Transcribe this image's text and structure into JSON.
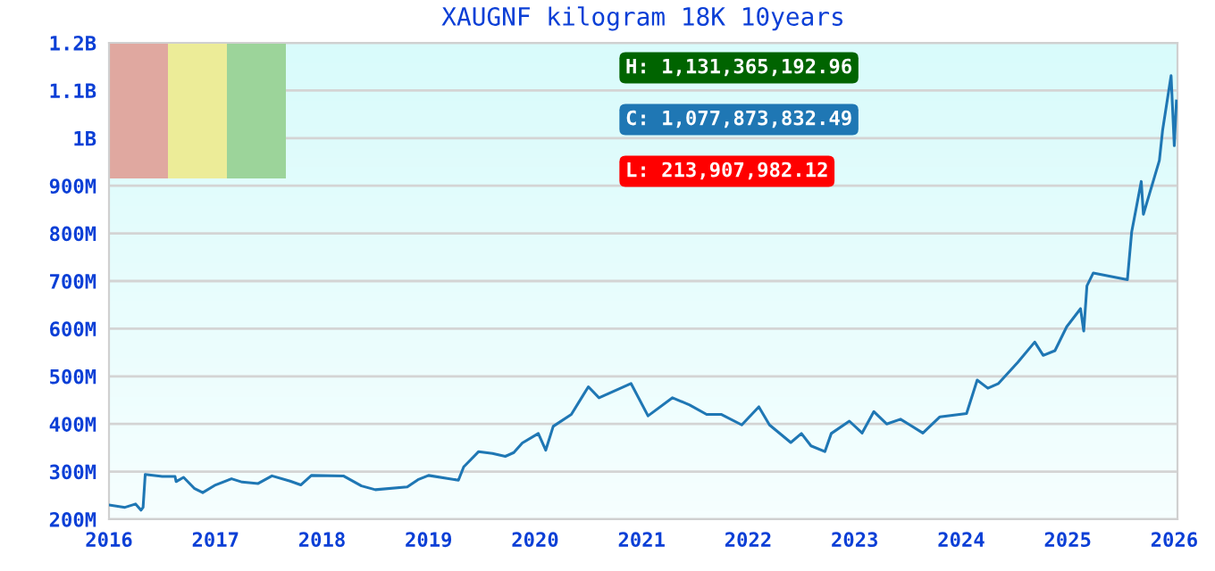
{
  "chart_data": {
    "type": "line",
    "title": "XAUGNF kilogram 18K 10years",
    "x": [
      2016.0,
      2016.15,
      2016.25,
      2016.3,
      2016.32,
      2016.34,
      2016.5,
      2016.62,
      2016.63,
      2016.7,
      2016.8,
      2016.88,
      2017.0,
      2017.15,
      2017.25,
      2017.4,
      2017.53,
      2017.7,
      2017.8,
      2017.9,
      2018.2,
      2018.37,
      2018.5,
      2018.8,
      2018.9,
      2019.0,
      2019.28,
      2019.33,
      2019.47,
      2019.6,
      2019.72,
      2019.8,
      2019.88,
      2020.03,
      2020.1,
      2020.17,
      2020.34,
      2020.45,
      2020.5,
      2020.6,
      2020.9,
      2021.06,
      2021.29,
      2021.45,
      2021.61,
      2021.75,
      2021.94,
      2022.1,
      2022.2,
      2022.4,
      2022.5,
      2022.59,
      2022.72,
      2022.78,
      2022.95,
      2023.07,
      2023.18,
      2023.3,
      2023.43,
      2023.64,
      2023.8,
      2024.05,
      2024.15,
      2024.25,
      2024.35,
      2024.53,
      2024.69,
      2024.77,
      2024.88,
      2024.99,
      2025.12,
      2025.15,
      2025.18,
      2025.24,
      2025.56,
      2025.6,
      2025.69,
      2025.71,
      2025.86,
      2025.89,
      2025.97,
      2026.0,
      2026.02
    ],
    "series": [
      {
        "color": "#1f77b4",
        "values": [
          230000000,
          225000000,
          232000000,
          219000000,
          225000000,
          294000000,
          290000000,
          290000000,
          279000000,
          288000000,
          265000000,
          256000000,
          272000000,
          285000000,
          278000000,
          275000000,
          291000000,
          280000000,
          272000000,
          292000000,
          291000000,
          270000000,
          262000000,
          268000000,
          283000000,
          292000000,
          282000000,
          310000000,
          342000000,
          338000000,
          332000000,
          340000000,
          360000000,
          380000000,
          345000000,
          395000000,
          420000000,
          460000000,
          478000000,
          455000000,
          485000000,
          417000000,
          455000000,
          440000000,
          420000000,
          420000000,
          398000000,
          436000000,
          398000000,
          361000000,
          380000000,
          354000000,
          342000000,
          380000000,
          406000000,
          381000000,
          426000000,
          400000000,
          410000000,
          381000000,
          415000000,
          422000000,
          492000000,
          475000000,
          485000000,
          529000000,
          572000000,
          544000000,
          554000000,
          604000000,
          642000000,
          595000000,
          690000000,
          717000000,
          703000000,
          803000000,
          909000000,
          840000000,
          953000000,
          1016000000,
          1131000000,
          984000000,
          1078000000
        ]
      }
    ],
    "xlim": [
      2016,
      2026.03
    ],
    "xticks": [
      2016,
      2017,
      2018,
      2019,
      2020,
      2021,
      2022,
      2023,
      2024,
      2025,
      2026
    ],
    "ylim": [
      200000000,
      1200000000
    ],
    "yticks": [
      {
        "value": 200000000,
        "label": "200M"
      },
      {
        "value": 300000000,
        "label": "300M"
      },
      {
        "value": 400000000,
        "label": "400M"
      },
      {
        "value": 500000000,
        "label": "500M"
      },
      {
        "value": 600000000,
        "label": "600M"
      },
      {
        "value": 700000000,
        "label": "700M"
      },
      {
        "value": 800000000,
        "label": "800M"
      },
      {
        "value": 900000000,
        "label": "900M"
      },
      {
        "value": 1000000000,
        "label": "1B"
      },
      {
        "value": 1100000000,
        "label": "1.1B"
      },
      {
        "value": 1200000000,
        "label": "1.2B"
      }
    ],
    "grid": "y",
    "marker": "none",
    "line_style": "solid",
    "annotations": [
      "H: 1,131,365,192.96",
      "C: 1,077,873,832.49",
      "L: 213,907,982.12"
    ]
  }
}
